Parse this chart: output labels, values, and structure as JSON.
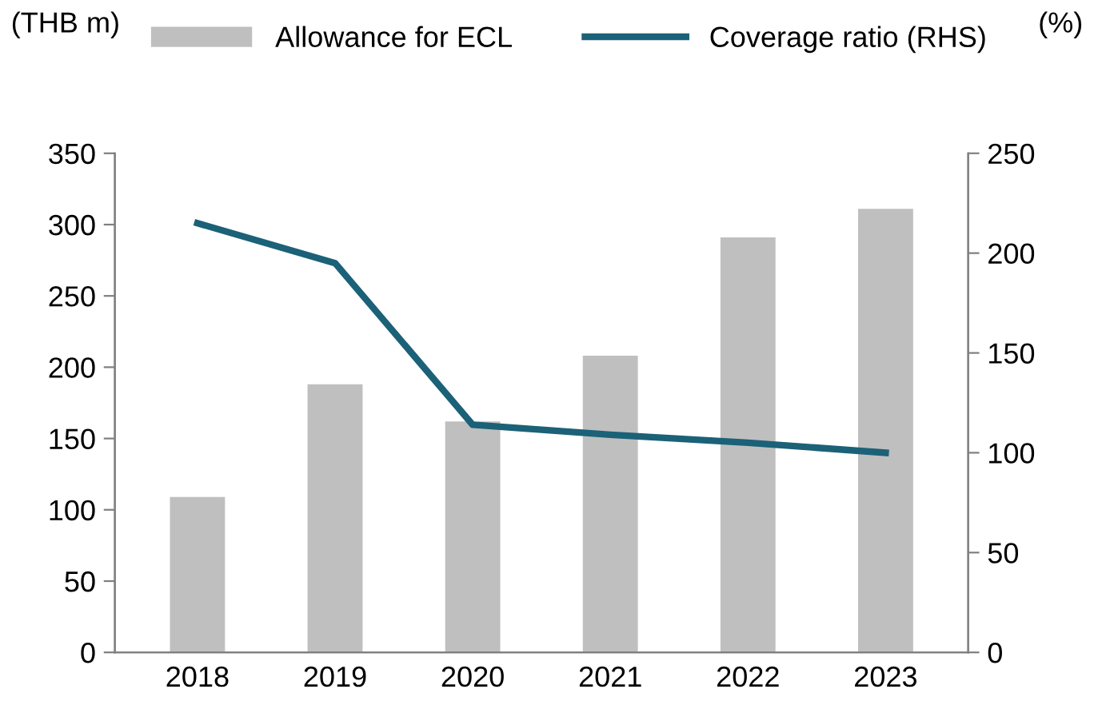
{
  "chart_data": {
    "type": "bar",
    "categories": [
      "2018",
      "2019",
      "2020",
      "2021",
      "2022",
      "2023"
    ],
    "ylabel": "(THB m)",
    "y2label": "(%)",
    "series": [
      {
        "name": "Allowance for ECL",
        "color": "#bfbfbf",
        "values": [
          109,
          188,
          162,
          208,
          291,
          311
        ]
      },
      {
        "name": "Coverage ratio (RHS)",
        "type": "line",
        "axis": "y2",
        "color": "#1b6178",
        "values": [
          215,
          195,
          114,
          109,
          105,
          100
        ]
      }
    ],
    "ylim": [
      0,
      350
    ],
    "yticks": [
      0,
      50,
      100,
      150,
      200,
      250,
      300,
      350
    ],
    "y2lim": [
      0,
      250
    ],
    "y2ticks": [
      0,
      50,
      100,
      150,
      200,
      250
    ],
    "grid": false,
    "legend": "top",
    "marker": "none",
    "line_style": "solid"
  }
}
